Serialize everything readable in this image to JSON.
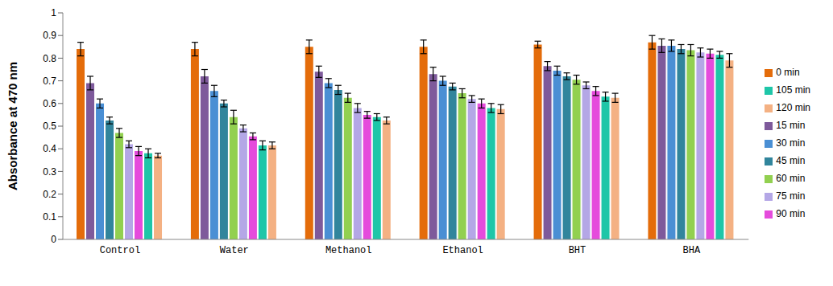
{
  "chart_data": {
    "type": "bar",
    "y_label": "Absorbance at 470 nm",
    "categories": [
      "Control",
      "Water",
      "Methanol",
      "Ethanol",
      "BHT",
      "BHA"
    ],
    "ylim": [
      0,
      1
    ],
    "yticks": [
      0,
      0.1,
      0.2,
      0.3,
      0.4,
      0.5,
      0.6,
      0.7,
      0.8,
      0.9,
      1
    ],
    "grid": false,
    "legend": "right",
    "series": [
      {
        "name": "0 min",
        "color": "#e46c0a",
        "values": [
          0.84,
          0.84,
          0.85,
          0.85,
          0.86,
          0.87
        ],
        "errors": [
          0.03,
          0.03,
          0.03,
          0.03,
          0.015,
          0.03
        ]
      },
      {
        "name": "15 min",
        "color": "#7e5a9b",
        "values": [
          0.69,
          0.72,
          0.74,
          0.73,
          0.765,
          0.855
        ],
        "errors": [
          0.03,
          0.03,
          0.025,
          0.03,
          0.02,
          0.03
        ]
      },
      {
        "name": "30 min",
        "color": "#4a8fd4",
        "values": [
          0.6,
          0.655,
          0.69,
          0.7,
          0.745,
          0.855
        ],
        "errors": [
          0.02,
          0.025,
          0.02,
          0.02,
          0.02,
          0.025
        ]
      },
      {
        "name": "45 min",
        "color": "#31859c",
        "values": [
          0.525,
          0.6,
          0.66,
          0.675,
          0.72,
          0.84
        ],
        "errors": [
          0.015,
          0.015,
          0.02,
          0.015,
          0.015,
          0.02
        ]
      },
      {
        "name": "60 min",
        "color": "#92d050",
        "values": [
          0.47,
          0.54,
          0.625,
          0.645,
          0.705,
          0.835
        ],
        "errors": [
          0.02,
          0.03,
          0.02,
          0.02,
          0.02,
          0.025
        ]
      },
      {
        "name": "75 min",
        "color": "#b4a7e6",
        "values": [
          0.42,
          0.49,
          0.58,
          0.62,
          0.68,
          0.825
        ],
        "errors": [
          0.015,
          0.015,
          0.02,
          0.015,
          0.015,
          0.02
        ]
      },
      {
        "name": "90 min",
        "color": "#e54bdc",
        "values": [
          0.39,
          0.455,
          0.55,
          0.6,
          0.655,
          0.82
        ],
        "errors": [
          0.02,
          0.015,
          0.015,
          0.02,
          0.02,
          0.02
        ]
      },
      {
        "name": "105 min",
        "color": "#1ec6a8",
        "values": [
          0.38,
          0.415,
          0.54,
          0.58,
          0.63,
          0.815
        ],
        "errors": [
          0.02,
          0.02,
          0.015,
          0.02,
          0.02,
          0.015
        ]
      },
      {
        "name": "120 min",
        "color": "#f4b183",
        "values": [
          0.37,
          0.415,
          0.525,
          0.575,
          0.625,
          0.79
        ],
        "errors": [
          0.01,
          0.015,
          0.015,
          0.02,
          0.02,
          0.03
        ]
      }
    ]
  }
}
